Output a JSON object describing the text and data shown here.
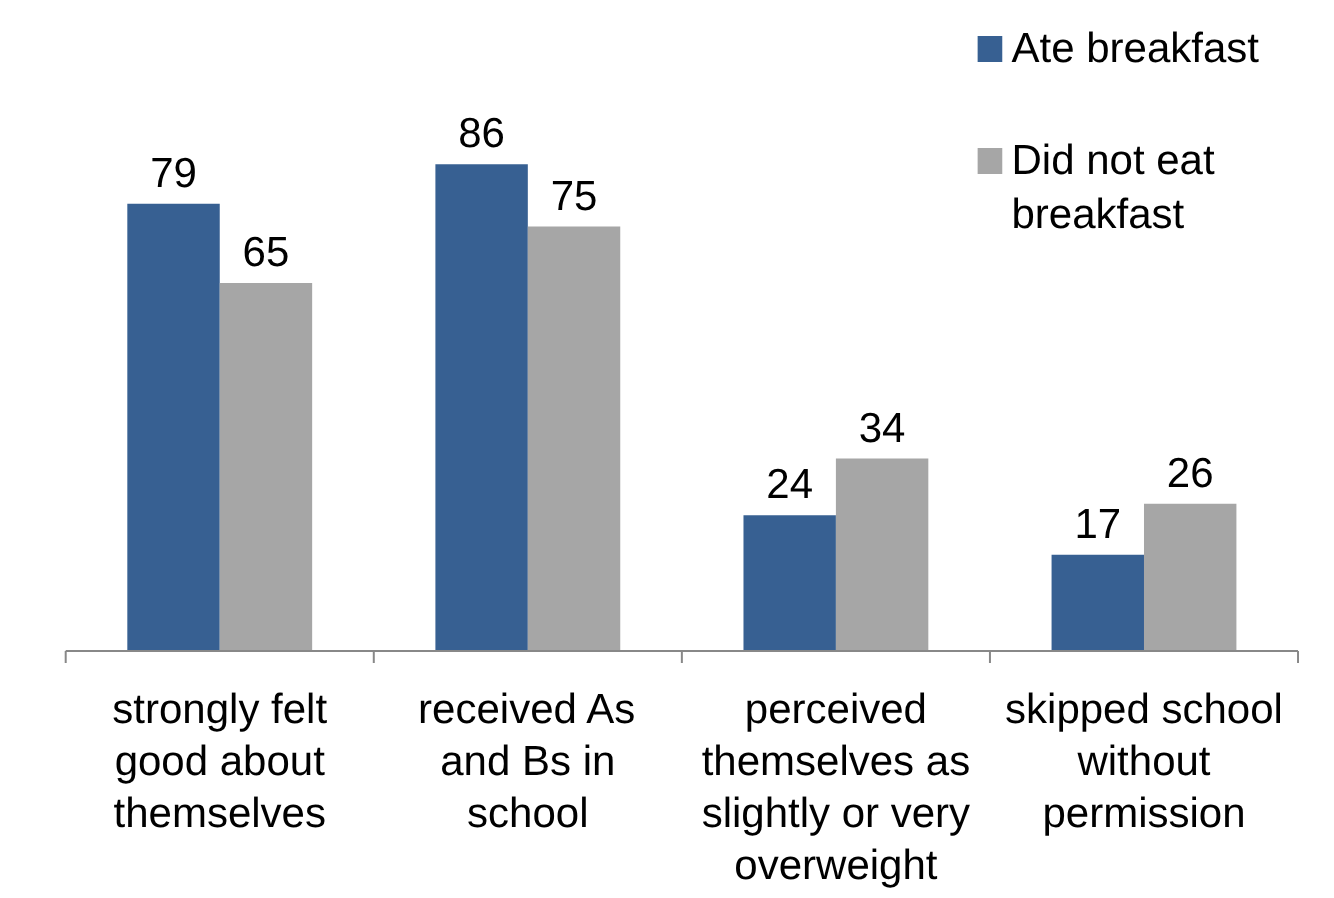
{
  "chart_data": {
    "type": "bar",
    "categories": [
      "strongly felt good about themselves",
      "received As and Bs in school",
      "perceived themselves as slightly or very overweight",
      "skipped school without permission"
    ],
    "series": [
      {
        "name": "Ate breakfast",
        "color": "#376092",
        "values": [
          79,
          86,
          24,
          17
        ]
      },
      {
        "name": "Did not eat breakfast",
        "color": "#a6a6a6",
        "values": [
          65,
          75,
          34,
          26
        ]
      }
    ],
    "data_labels": true,
    "legend": "top right",
    "grid": false
  }
}
